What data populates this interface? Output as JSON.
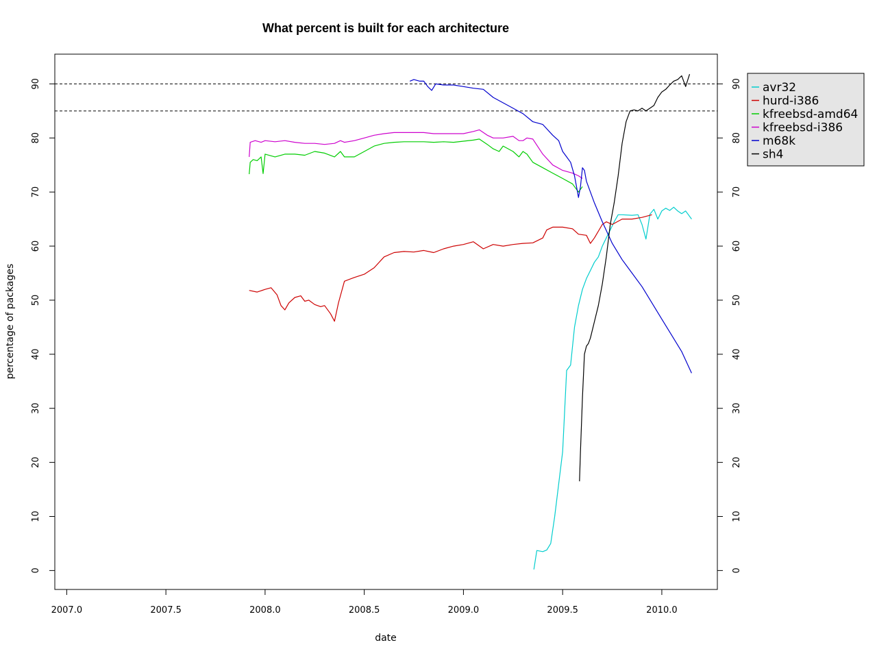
{
  "chart_data": {
    "type": "line",
    "title": "What percent is built for each architecture",
    "xlabel": "date",
    "ylabel": "percentage of packages",
    "xlim": [
      2006.94,
      2010.28
    ],
    "ylim": [
      -3.5,
      95.5
    ],
    "x_ticks": [
      2007.0,
      2007.5,
      2008.0,
      2008.5,
      2009.0,
      2009.5,
      2010.0
    ],
    "x_tick_labels": [
      "2007.0",
      "2007.5",
      "2008.0",
      "2008.5",
      "2009.0",
      "2009.5",
      "2010.0"
    ],
    "y_ticks": [
      0,
      10,
      20,
      30,
      40,
      50,
      60,
      70,
      80,
      90
    ],
    "y_tick_labels": [
      "0",
      "10",
      "20",
      "30",
      "40",
      "50",
      "60",
      "70",
      "80",
      "90"
    ],
    "reference_lines": [
      90,
      85
    ],
    "legend": "top-right",
    "series": [
      {
        "name": "avr32",
        "color": "#00cdcd",
        "x": [
          2009.355,
          2009.37,
          2009.4,
          2009.42,
          2009.44,
          2009.46,
          2009.48,
          2009.5,
          2009.52,
          2009.54,
          2009.56,
          2009.58,
          2009.6,
          2009.62,
          2009.64,
          2009.66,
          2009.68,
          2009.7,
          2009.72,
          2009.74,
          2009.76,
          2009.78,
          2009.8,
          2009.85,
          2009.88,
          2009.9,
          2009.92,
          2009.94,
          2009.96,
          2009.98,
          2010.0,
          2010.02,
          2010.04,
          2010.06,
          2010.08,
          2010.1,
          2010.12,
          2010.15
        ],
        "y": [
          0.2,
          3.7,
          3.5,
          3.8,
          5,
          10,
          16,
          22,
          37,
          38,
          45,
          49,
          52,
          54,
          55.5,
          57,
          58,
          60,
          61.5,
          63,
          64.5,
          65.8,
          65.8,
          65.7,
          65.8,
          64,
          61.3,
          65.9,
          66.8,
          65,
          66.5,
          67,
          66.6,
          67.2,
          66.5,
          66,
          66.5,
          65
        ]
      },
      {
        "name": "hurd-i386",
        "color": "#cd0000",
        "x": [
          2007.92,
          2007.96,
          2008.0,
          2008.03,
          2008.06,
          2008.08,
          2008.1,
          2008.12,
          2008.15,
          2008.18,
          2008.2,
          2008.22,
          2008.25,
          2008.28,
          2008.3,
          2008.33,
          2008.35,
          2008.37,
          2008.4,
          2008.45,
          2008.5,
          2008.55,
          2008.6,
          2008.65,
          2008.7,
          2008.75,
          2008.8,
          2008.85,
          2008.9,
          2008.95,
          2009.0,
          2009.05,
          2009.1,
          2009.15,
          2009.2,
          2009.25,
          2009.3,
          2009.35,
          2009.4,
          2009.42,
          2009.45,
          2009.5,
          2009.55,
          2009.58,
          2009.62,
          2009.64,
          2009.66,
          2009.7,
          2009.72,
          2009.75,
          2009.8,
          2009.85,
          2009.9,
          2009.95
        ],
        "y": [
          51.8,
          51.5,
          52,
          52.3,
          51,
          49,
          48.2,
          49.5,
          50.5,
          50.8,
          49.8,
          50,
          49.2,
          48.8,
          49,
          47.5,
          46.1,
          49.5,
          53.5,
          54.2,
          54.8,
          56,
          58,
          58.8,
          59,
          58.9,
          59.2,
          58.8,
          59.5,
          60,
          60.3,
          60.8,
          59.5,
          60.3,
          60,
          60.3,
          60.5,
          60.6,
          61.5,
          63,
          63.5,
          63.5,
          63.2,
          62.2,
          62,
          60.5,
          61.5,
          64,
          64.5,
          64,
          65,
          65,
          65.3,
          65.8
        ]
      },
      {
        "name": "kfreebsd-amd64",
        "color": "#00cd00",
        "x": [
          2007.92,
          2007.925,
          2007.94,
          2007.96,
          2007.98,
          2007.99,
          2008.0,
          2008.05,
          2008.1,
          2008.15,
          2008.2,
          2008.25,
          2008.3,
          2008.35,
          2008.38,
          2008.4,
          2008.45,
          2008.5,
          2008.55,
          2008.6,
          2008.65,
          2008.7,
          2008.75,
          2008.8,
          2008.85,
          2008.9,
          2008.95,
          2009.0,
          2009.05,
          2009.08,
          2009.12,
          2009.15,
          2009.18,
          2009.2,
          2009.25,
          2009.28,
          2009.3,
          2009.32,
          2009.35,
          2009.4,
          2009.45,
          2009.5,
          2009.55,
          2009.58,
          2009.6
        ],
        "y": [
          73.3,
          75.5,
          76,
          75.8,
          76.5,
          73.4,
          77,
          76.5,
          77,
          77,
          76.8,
          77.5,
          77.2,
          76.5,
          77.5,
          76.5,
          76.5,
          77.5,
          78.5,
          79,
          79.2,
          79.3,
          79.3,
          79.3,
          79.2,
          79.3,
          79.2,
          79.4,
          79.6,
          79.8,
          78.8,
          78,
          77.5,
          78.5,
          77.5,
          76.5,
          77.5,
          77,
          75.5,
          74.5,
          73.5,
          72.5,
          71.5,
          70,
          71
        ]
      },
      {
        "name": "kfreebsd-i386",
        "color": "#cd00cd",
        "x": [
          2007.92,
          2007.925,
          2007.95,
          2007.98,
          2008.0,
          2008.05,
          2008.1,
          2008.15,
          2008.2,
          2008.25,
          2008.3,
          2008.35,
          2008.38,
          2008.4,
          2008.45,
          2008.5,
          2008.55,
          2008.6,
          2008.65,
          2008.7,
          2008.75,
          2008.8,
          2008.85,
          2008.9,
          2008.95,
          2009.0,
          2009.05,
          2009.08,
          2009.12,
          2009.15,
          2009.18,
          2009.2,
          2009.25,
          2009.28,
          2009.3,
          2009.32,
          2009.35,
          2009.4,
          2009.45,
          2009.5,
          2009.55,
          2009.58,
          2009.6
        ],
        "y": [
          76.5,
          79.2,
          79.5,
          79.2,
          79.5,
          79.3,
          79.5,
          79.2,
          79,
          79,
          78.8,
          79,
          79.5,
          79.2,
          79.5,
          80,
          80.5,
          80.8,
          81,
          81,
          81,
          81,
          80.8,
          80.8,
          80.8,
          80.8,
          81.2,
          81.5,
          80.5,
          80,
          80,
          80,
          80.3,
          79.5,
          79.5,
          80,
          79.8,
          77,
          75,
          74,
          73.5,
          73,
          72.5
        ]
      },
      {
        "name": "m68k",
        "color": "#0000cd",
        "x": [
          2008.73,
          2008.75,
          2008.78,
          2008.8,
          2008.82,
          2008.84,
          2008.86,
          2008.9,
          2008.95,
          2009.0,
          2009.05,
          2009.1,
          2009.15,
          2009.2,
          2009.25,
          2009.3,
          2009.35,
          2009.4,
          2009.45,
          2009.48,
          2009.5,
          2009.52,
          2009.54,
          2009.56,
          2009.575,
          2009.58,
          2009.59,
          2009.6,
          2009.61,
          2009.62,
          2009.64,
          2009.66,
          2009.7,
          2009.75,
          2009.8,
          2009.85,
          2009.9,
          2009.95,
          2010.0,
          2010.05,
          2010.1,
          2010.15
        ],
        "y": [
          90.5,
          90.8,
          90.5,
          90.5,
          89.5,
          88.8,
          90,
          89.8,
          89.8,
          89.5,
          89.2,
          89,
          87.5,
          86.5,
          85.5,
          84.5,
          83,
          82.5,
          80.5,
          79.5,
          77.5,
          76.5,
          75.5,
          73,
          70,
          69,
          71,
          74.5,
          74,
          72,
          70,
          68,
          64.5,
          60.5,
          57.5,
          55,
          52.5,
          49.5,
          46.5,
          43.5,
          40.5,
          36.5
        ]
      },
      {
        "name": "sh4",
        "color": "#000000",
        "x": [
          2009.585,
          2009.59,
          2009.6,
          2009.61,
          2009.62,
          2009.63,
          2009.64,
          2009.66,
          2009.68,
          2009.7,
          2009.72,
          2009.74,
          2009.76,
          2009.78,
          2009.8,
          2009.82,
          2009.84,
          2009.86,
          2009.88,
          2009.9,
          2009.92,
          2009.94,
          2009.96,
          2009.98,
          2010.0,
          2010.02,
          2010.04,
          2010.06,
          2010.08,
          2010.1,
          2010.12,
          2010.14
        ],
        "y": [
          16.5,
          22,
          32,
          40,
          41.5,
          42,
          43,
          46,
          49,
          53,
          58,
          64,
          68,
          73,
          79,
          83,
          85,
          85.2,
          85,
          85.5,
          85,
          85.5,
          86,
          87.5,
          88.5,
          89,
          89.8,
          90.5,
          90.8,
          91.5,
          89.5,
          91.8
        ]
      }
    ]
  }
}
